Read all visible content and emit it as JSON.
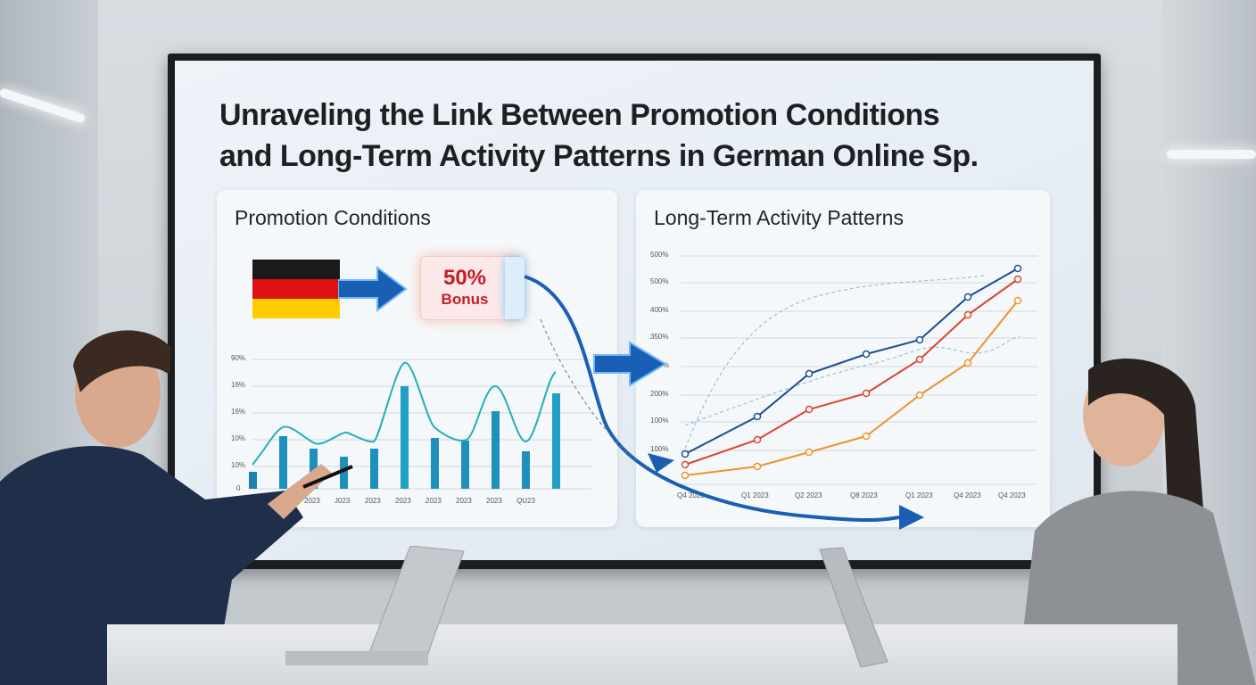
{
  "title": {
    "line1": "Unraveling the Link Between Promotion Conditions",
    "line2": "and Long-Term Activity Patterns in German Online Sp."
  },
  "left_panel": {
    "title": "Promotion Conditions",
    "bonus": {
      "percent": "50%",
      "word": "Bonus"
    },
    "y_ticks": [
      "90%",
      "16%",
      "16%",
      "10%",
      "10%",
      "0"
    ],
    "x_ticks": [
      "2023",
      "J0",
      "2023",
      "J023",
      "2023",
      "2023",
      "2023",
      "2023",
      "2023",
      "QU23"
    ]
  },
  "right_panel": {
    "title": "Long-Term Activity Patterns",
    "y_ticks": [
      "500%",
      "500%",
      "400%",
      "350%",
      "%",
      "200%",
      "100%",
      "100%"
    ],
    "x_ticks": [
      "Q4 2023",
      "Q1 2023",
      "Q2 2023",
      "Q8 2023",
      "Q1 2023",
      "Q4 2023",
      "Q4 2023"
    ]
  },
  "colors": {
    "flag_black": "#1a1a1a",
    "flag_red": "#dd1111",
    "flag_gold": "#ffcc00",
    "accent_blue": "#1a5fb4",
    "teal": "#1fb0b8",
    "navy": "#1d4e8f",
    "red_line": "#d9452b",
    "orange_line": "#f0912a"
  }
}
